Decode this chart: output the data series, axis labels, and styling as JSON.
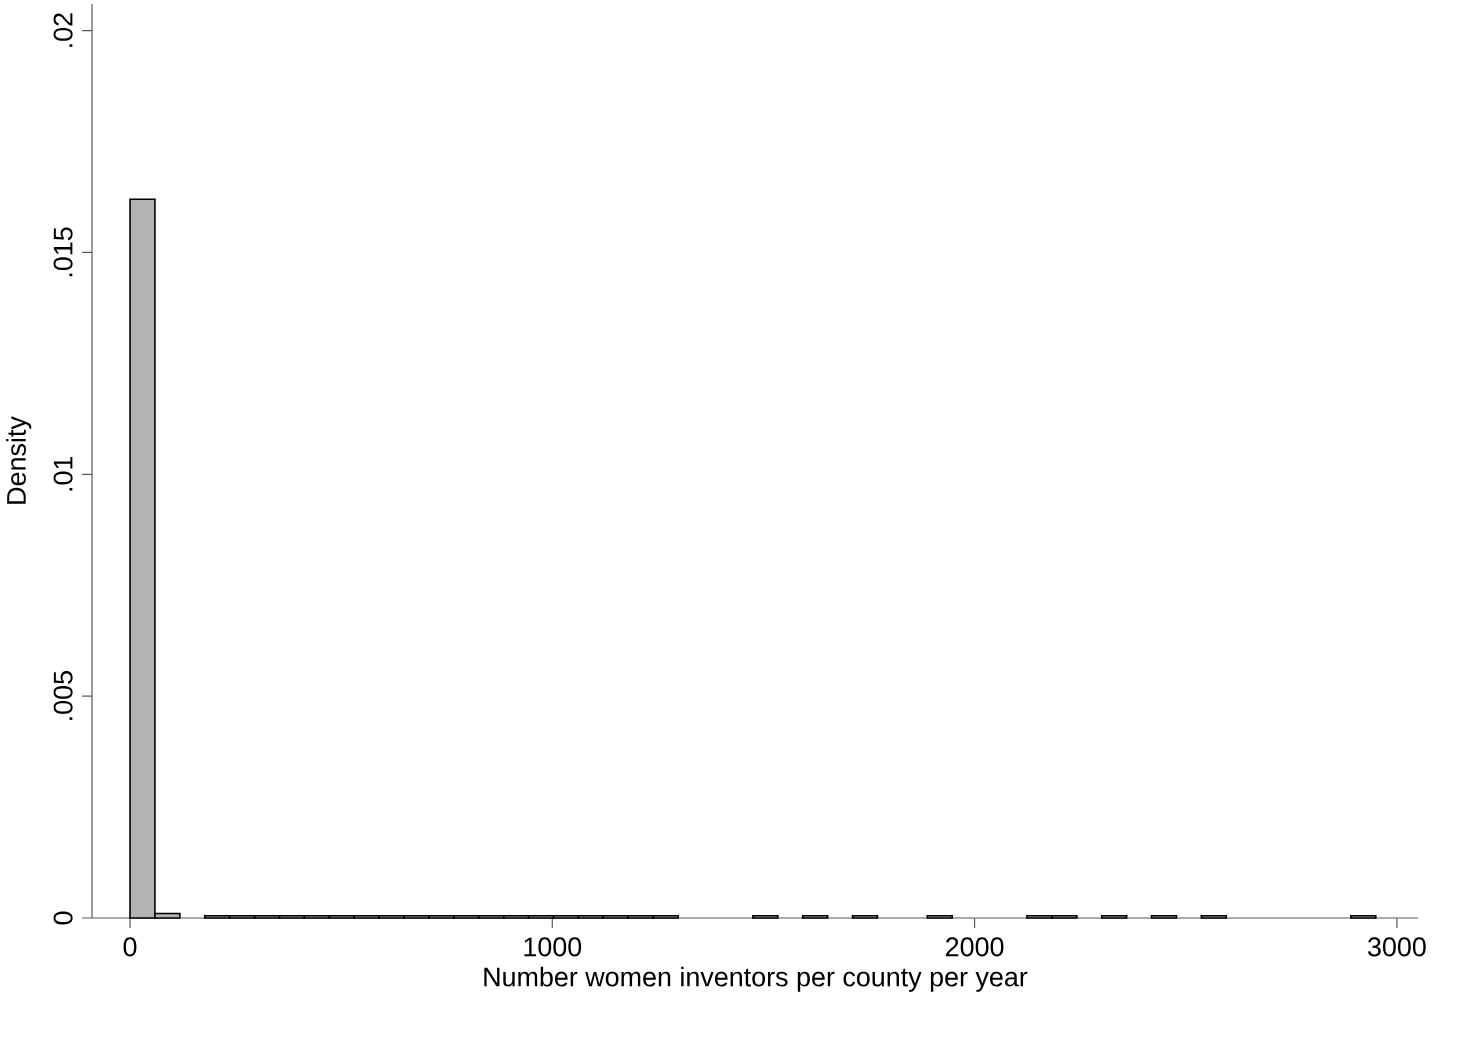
{
  "chart_data": {
    "type": "histogram",
    "xlabel": "Number women inventors per county per year",
    "ylabel": "Density",
    "bins": [
      0,
      59,
      118,
      177,
      236,
      295,
      354,
      413,
      472,
      531,
      590,
      649,
      708,
      767,
      826,
      885,
      944,
      1003,
      1062,
      1121,
      1180,
      1239,
      1298,
      1357,
      1416,
      1475,
      1534,
      1593,
      1652,
      1711,
      1770,
      1829,
      1888,
      1947,
      2006,
      2065,
      2124,
      2183,
      2242,
      2301,
      2360,
      2419,
      2478,
      2537,
      2596,
      2655,
      2714,
      2773,
      2832,
      2891,
      2950
    ],
    "values": [
      0.0162,
      0.0001,
      0,
      5e-05,
      5e-05,
      5e-05,
      5e-05,
      5e-05,
      5e-05,
      5e-05,
      5e-05,
      5e-05,
      5e-05,
      5e-05,
      5e-05,
      5e-05,
      5e-05,
      5e-05,
      5e-05,
      5e-05,
      5e-05,
      5e-05,
      0,
      0,
      0,
      5e-05,
      0,
      5e-05,
      0,
      5e-05,
      0,
      0,
      5e-05,
      0,
      0,
      0,
      5e-05,
      5e-05,
      0,
      5e-05,
      0,
      5e-05,
      0,
      5e-05,
      0,
      0,
      0,
      0,
      0,
      5e-05
    ],
    "color": "#b3b3b3",
    "xlim": [
      -90,
      3050
    ],
    "ylim": [
      0,
      0.0206
    ],
    "xticks": [
      0,
      1000,
      2000,
      3000
    ],
    "yticks": [
      0,
      {
        "value": 0.005,
        "label": ".005"
      },
      {
        "value": 0.01,
        "label": ".01"
      },
      {
        "value": 0.015,
        "label": ".015"
      },
      {
        "value": 0.02,
        "label": ".02"
      }
    ],
    "grid": false
  }
}
